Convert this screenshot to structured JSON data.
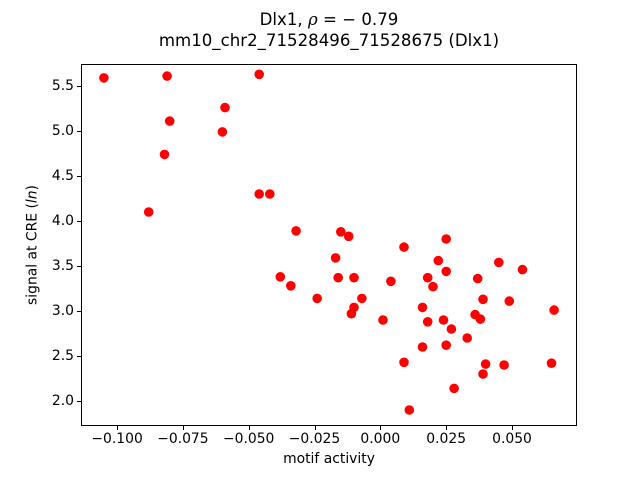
{
  "figure": {
    "title": {
      "prefix": "Dlx1, ",
      "rho": "ρ",
      "suffix": " = − 0.79"
    },
    "subtitle": "mm10_chr2_71528496_71528675 (Dlx1)",
    "x_axis_label": "motif activity",
    "y_axis_label": {
      "prefix": "signal at CRE (",
      "italic": "ln",
      "suffix": ")"
    }
  },
  "chart_data": {
    "type": "scatter",
    "title": "Dlx1, ρ = − 0.79",
    "subtitle": "mm10_chr2_71528496_71528675 (Dlx1)",
    "xlabel": "motif activity",
    "ylabel": "signal at CRE (ln)",
    "xlim": [
      -0.1137,
      0.0747
    ],
    "ylim": [
      1.722,
      5.744
    ],
    "grid": false,
    "legend": null,
    "marker": {
      "shape": "circle",
      "color": "#ff0000",
      "radius_px": 4.8
    },
    "x_ticks": {
      "values": [
        -0.1,
        -0.075,
        -0.05,
        -0.025,
        0.0,
        0.025,
        0.05
      ],
      "labels": [
        "−0.100",
        "−0.075",
        "−0.050",
        "−0.025",
        "0.000",
        "0.025",
        "0.050"
      ]
    },
    "y_ticks": {
      "values": [
        2.0,
        2.5,
        3.0,
        3.5,
        4.0,
        4.5,
        5.0,
        5.5
      ],
      "labels": [
        "2.0",
        "2.5",
        "3.0",
        "3.5",
        "4.0",
        "4.5",
        "5.0",
        "5.5"
      ]
    },
    "points": [
      [
        -0.105,
        5.59
      ],
      [
        -0.081,
        5.61
      ],
      [
        -0.046,
        5.63
      ],
      [
        -0.059,
        5.26
      ],
      [
        -0.08,
        5.11
      ],
      [
        -0.06,
        4.99
      ],
      [
        -0.082,
        4.74
      ],
      [
        -0.046,
        4.3
      ],
      [
        -0.042,
        4.3
      ],
      [
        -0.088,
        4.1
      ],
      [
        -0.032,
        3.89
      ],
      [
        -0.015,
        3.88
      ],
      [
        -0.012,
        3.83
      ],
      [
        0.025,
        3.8
      ],
      [
        0.009,
        3.71
      ],
      [
        -0.017,
        3.59
      ],
      [
        0.022,
        3.56
      ],
      [
        0.045,
        3.54
      ],
      [
        0.025,
        3.44
      ],
      [
        0.054,
        3.46
      ],
      [
        -0.016,
        3.37
      ],
      [
        -0.01,
        3.37
      ],
      [
        0.004,
        3.33
      ],
      [
        0.018,
        3.37
      ],
      [
        0.02,
        3.27
      ],
      [
        0.037,
        3.36
      ],
      [
        -0.038,
        3.38
      ],
      [
        -0.034,
        3.28
      ],
      [
        -0.024,
        3.14
      ],
      [
        -0.007,
        3.14
      ],
      [
        -0.01,
        3.04
      ],
      [
        -0.011,
        2.97
      ],
      [
        0.039,
        3.13
      ],
      [
        0.049,
        3.11
      ],
      [
        0.066,
        3.01
      ],
      [
        0.001,
        2.9
      ],
      [
        0.016,
        3.04
      ],
      [
        0.018,
        2.88
      ],
      [
        0.024,
        2.9
      ],
      [
        0.027,
        2.8
      ],
      [
        0.036,
        2.96
      ],
      [
        0.038,
        2.91
      ],
      [
        0.033,
        2.7
      ],
      [
        0.025,
        2.62
      ],
      [
        0.016,
        2.6
      ],
      [
        0.009,
        2.43
      ],
      [
        0.04,
        2.41
      ],
      [
        0.047,
        2.4
      ],
      [
        0.039,
        2.3
      ],
      [
        0.065,
        2.42
      ],
      [
        0.028,
        2.14
      ],
      [
        0.011,
        1.9
      ]
    ]
  }
}
